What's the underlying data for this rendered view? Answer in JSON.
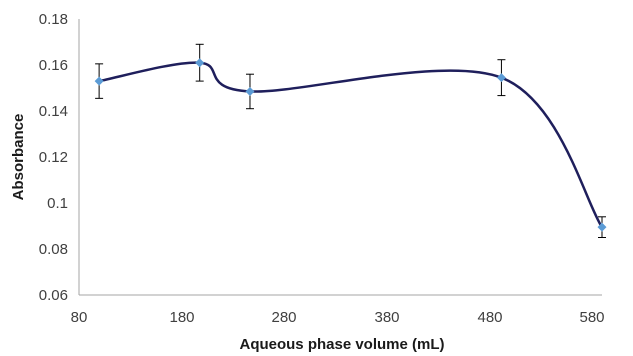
{
  "chart_data": {
    "type": "scatter",
    "title": "",
    "xlabel": "Aqueous phase volume (mL)",
    "ylabel": "Absorbance",
    "xlim": [
      80,
      600
    ],
    "ylim": [
      0.06,
      0.18
    ],
    "x_ticks": [
      "80",
      "180",
      "280",
      "380",
      "480",
      "580"
    ],
    "y_ticks": [
      "0.06",
      "0.08",
      "0.1",
      "0.12",
      "0.14",
      "0.16",
      "0.18"
    ],
    "grid": false,
    "smooth_line": true,
    "line_color": "#1f1f5c",
    "marker_color": "#5b9bd5",
    "series": [
      {
        "x": [
          100,
          200,
          250,
          500,
          600
        ],
        "y": [
          0.153,
          0.161,
          0.1485,
          0.1545,
          0.0895
        ],
        "error": [
          0.0075,
          0.008,
          0.0075,
          0.0078,
          0.0045
        ]
      }
    ]
  }
}
